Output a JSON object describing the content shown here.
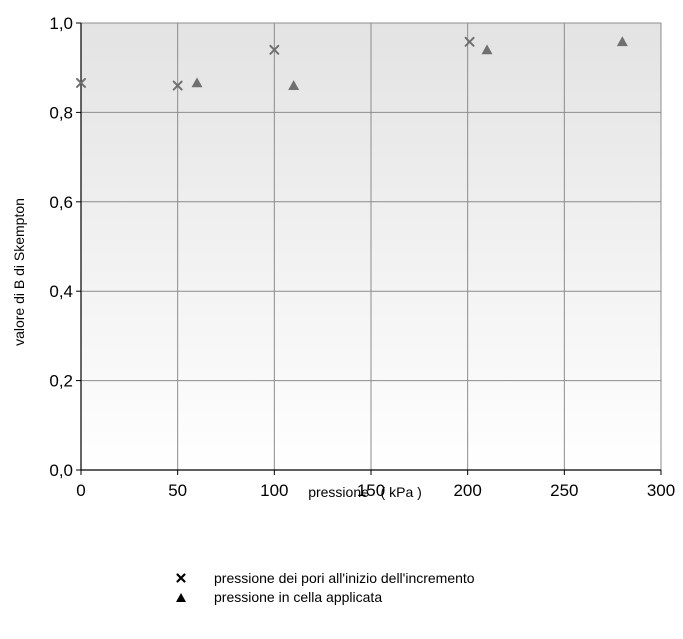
{
  "chart_data": {
    "type": "scatter",
    "xlabel": "pressione   ( kPa )",
    "ylabel": "valore di B di Skempton",
    "xlim": [
      0,
      300
    ],
    "ylim": [
      0,
      1.0
    ],
    "x_ticks": [
      "0",
      "50",
      "100",
      "150",
      "200",
      "250",
      "300"
    ],
    "y_ticks": [
      "0,0",
      "0,2",
      "0,4",
      "0,6",
      "0,8",
      "1,0"
    ],
    "grid": true,
    "legend_position": "bottom",
    "series": [
      {
        "name": "pressione dei pori all'inizio dell'incremento",
        "marker": "x",
        "color": "#707070",
        "x": [
          0,
          50,
          100,
          201
        ],
        "y": [
          0.866,
          0.86,
          0.94,
          0.958
        ]
      },
      {
        "name": "pressione in cella applicata",
        "marker": "triangle",
        "color": "#707070",
        "x": [
          60,
          110,
          210,
          280
        ],
        "y": [
          0.866,
          0.86,
          0.94,
          0.958
        ]
      }
    ],
    "plot_background_top": "#e3e3e3",
    "plot_background_bottom": "#ffffff",
    "grid_color": "#8c8c8c"
  }
}
